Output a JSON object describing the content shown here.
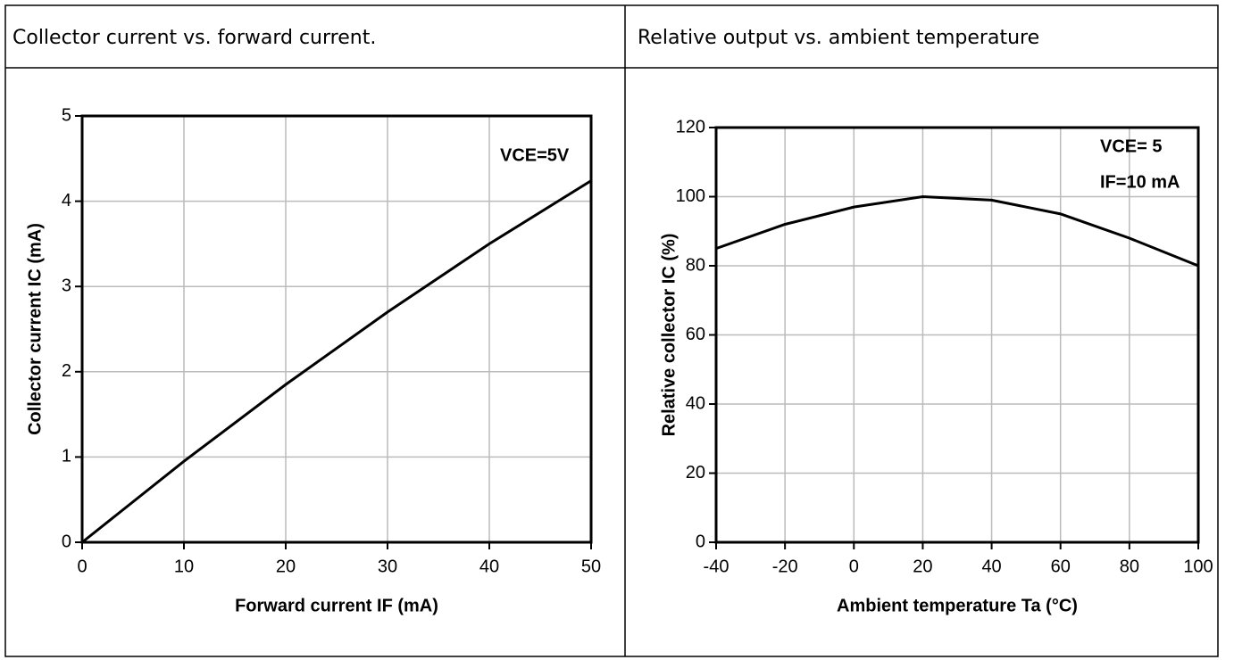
{
  "headers": [
    "Collector current vs. forward current.",
    "Relative output vs. ambient temperature"
  ],
  "chart_data": [
    {
      "type": "line",
      "x_label": "Forward current IF (mA)",
      "y_label": "Collector current IC (mA)",
      "annotations": [
        "VCE=5V"
      ],
      "x": [
        0,
        10,
        20,
        30,
        40,
        50
      ],
      "series": [
        {
          "name": "IC",
          "color": "#000000",
          "values": [
            0,
            0.95,
            1.85,
            2.7,
            3.5,
            4.24
          ]
        }
      ],
      "xlim": [
        0,
        50
      ],
      "xticks": [
        0,
        10,
        20,
        30,
        40,
        50
      ],
      "ylim": [
        0,
        5
      ],
      "yticks": [
        0,
        1,
        2,
        3,
        4,
        5
      ],
      "grid": true
    },
    {
      "type": "line",
      "x_label": "Ambient temperature Ta (°C)",
      "y_label": "Relative collector IC (%)",
      "annotations": [
        "VCE= 5",
        "IF=10 mA"
      ],
      "x": [
        -40,
        -20,
        0,
        20,
        40,
        60,
        80,
        100
      ],
      "series": [
        {
          "name": "Relative IC",
          "color": "#000000",
          "values": [
            85,
            92,
            97,
            100,
            99,
            95,
            88,
            80
          ]
        }
      ],
      "xlim": [
        -40,
        100
      ],
      "xticks": [
        -40,
        -20,
        0,
        20,
        40,
        60,
        80,
        100
      ],
      "ylim": [
        0,
        120
      ],
      "yticks": [
        0,
        20,
        40,
        60,
        80,
        100,
        120
      ],
      "grid": true
    }
  ]
}
